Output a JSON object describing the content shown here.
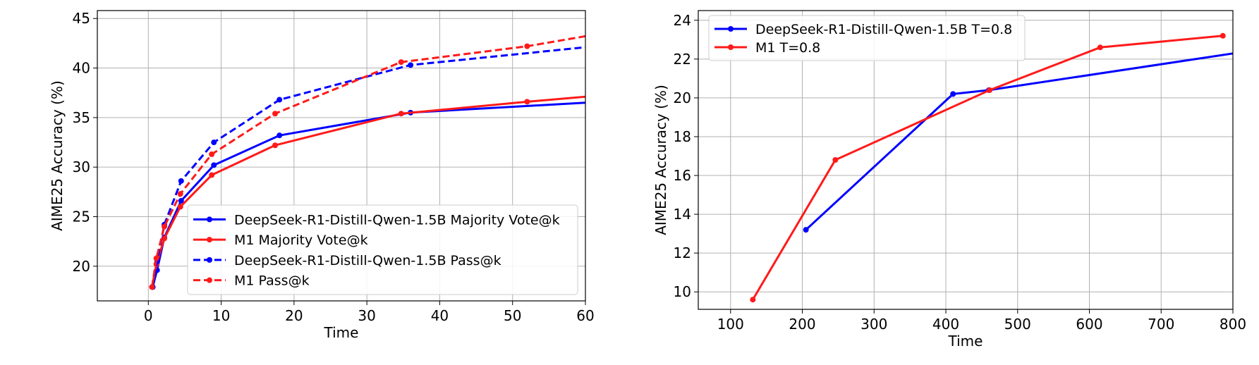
{
  "chart_data": [
    {
      "type": "line",
      "xlabel": "Time",
      "ylabel": "AIME25 Accuracy (%)",
      "xlim": [
        -7,
        60
      ],
      "ylim": [
        16.5,
        45.8
      ],
      "xticks": [
        0,
        10,
        20,
        30,
        40,
        50,
        60
      ],
      "yticks": [
        20,
        25,
        30,
        35,
        40,
        45
      ],
      "grid": true,
      "legend_position": "lower-right",
      "series": [
        {
          "name": "DeepSeek-R1-Distill-Qwen-1.5B Majority Vote@k",
          "color": "#0000ff",
          "dashed": false,
          "x": [
            0.6,
            1.2,
            2.2,
            4.5,
            9.0,
            18.0,
            36.0,
            72.0
          ],
          "y": [
            17.9,
            19.6,
            22.9,
            26.6,
            30.2,
            33.2,
            35.5,
            37.0
          ]
        },
        {
          "name": "M1 Majority Vote@k",
          "color": "#ff1a1a",
          "dashed": false,
          "x": [
            0.5,
            1.1,
            2.2,
            4.4,
            8.7,
            17.4,
            34.7,
            52.0,
            69.4
          ],
          "y": [
            17.9,
            20.2,
            22.8,
            26.0,
            29.2,
            32.2,
            35.4,
            36.6,
            37.7
          ]
        },
        {
          "name": "DeepSeek-R1-Distill-Qwen-1.5B Pass@k",
          "color": "#0000ff",
          "dashed": true,
          "x": [
            0.6,
            1.2,
            2.2,
            4.5,
            9.0,
            18.0,
            36.0,
            72.0
          ],
          "y": [
            17.9,
            20.5,
            24.2,
            28.6,
            32.5,
            36.8,
            40.3,
            43.0
          ]
        },
        {
          "name": "M1 Pass@k",
          "color": "#ff1a1a",
          "dashed": true,
          "x": [
            0.5,
            1.1,
            2.2,
            4.4,
            8.7,
            17.4,
            34.7,
            52.0,
            69.4
          ],
          "y": [
            17.9,
            20.8,
            24.0,
            27.3,
            31.3,
            35.4,
            40.6,
            42.2,
            44.4
          ]
        }
      ]
    },
    {
      "type": "line",
      "xlabel": "Time",
      "ylabel": "AIME25 Accuracy (%)",
      "xlim": [
        55,
        800
      ],
      "ylim": [
        9.1,
        24.5
      ],
      "xticks": [
        100,
        200,
        300,
        400,
        500,
        600,
        700,
        800
      ],
      "yticks": [
        10,
        12,
        14,
        16,
        18,
        20,
        22,
        24
      ],
      "grid": true,
      "legend_position": "upper-left",
      "series": [
        {
          "name": "DeepSeek-R1-Distill-Qwen-1.5B T=0.8",
          "color": "#0000ff",
          "dashed": false,
          "x": [
            205,
            410,
            460,
            820
          ],
          "y": [
            13.2,
            20.2,
            20.4,
            22.4
          ]
        },
        {
          "name": "M1 T=0.8",
          "color": "#ff1a1a",
          "dashed": false,
          "x": [
            131,
            246,
            461,
            615,
            786
          ],
          "y": [
            9.6,
            16.8,
            20.4,
            22.6,
            23.2
          ]
        }
      ]
    }
  ]
}
